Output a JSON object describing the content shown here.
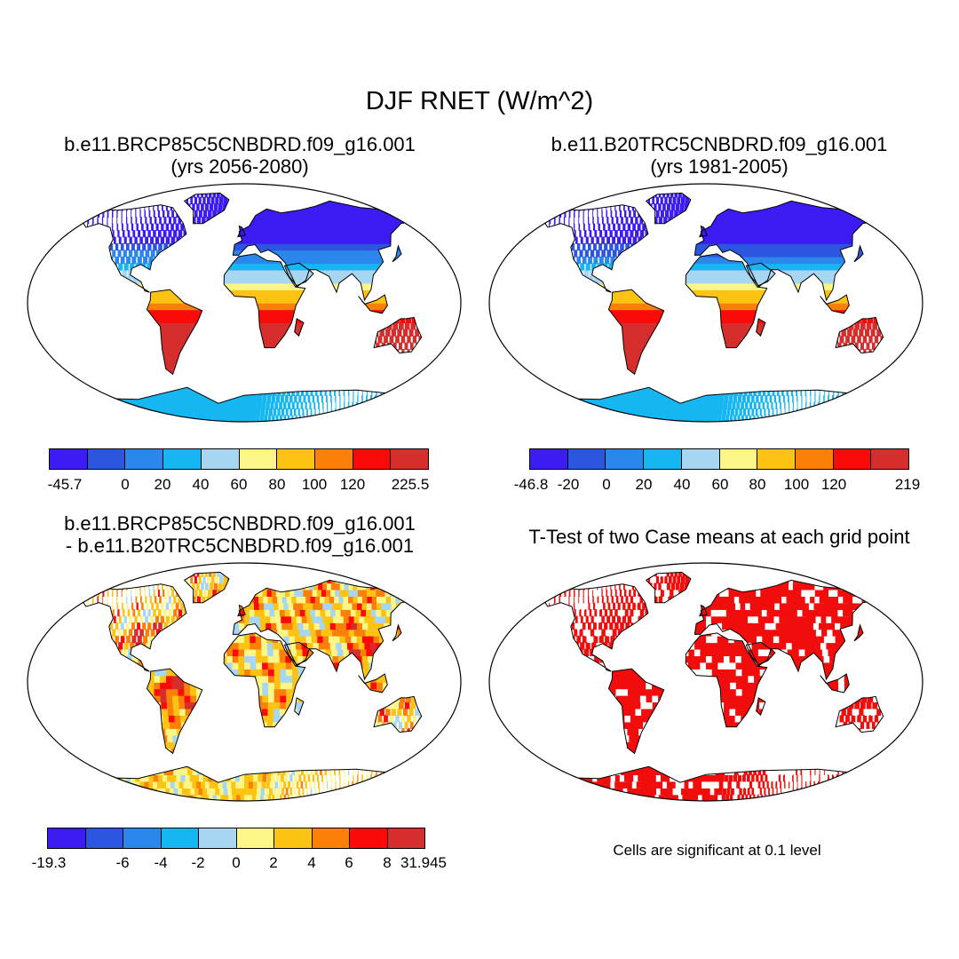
{
  "main_title": "DJF RNET (W/m^2)",
  "colors": {
    "scale": [
      "#3b1cf2",
      "#2c56e0",
      "#2b87ec",
      "#16b6f2",
      "#a6d6f2",
      "#fdf587",
      "#fcc312",
      "#fb8009",
      "#fb0a0a",
      "#d62d2d"
    ],
    "land_bg": "#ffffff",
    "coast": "#000000",
    "significant": "#f20d0d"
  },
  "panels": [
    {
      "name": "future",
      "title_line1": "b.e11.BRCP85C5CNBDRD.f09_g16.001",
      "title_line2": "(yrs 2056-2080)",
      "colorbar_labels": [
        "-45.7",
        "",
        "0",
        "20",
        "40",
        "60",
        "80",
        "100",
        "120",
        "",
        "225.5"
      ]
    },
    {
      "name": "historical",
      "title_line1": "b.e11.B20TRC5CNBDRD.f09_g16.001",
      "title_line2": "(yrs 1981-2005)",
      "colorbar_labels": [
        "-46.8",
        "-20",
        "0",
        "20",
        "40",
        "60",
        "80",
        "100",
        "120",
        "",
        "219"
      ]
    },
    {
      "name": "difference",
      "title_line1": "b.e11.BRCP85C5CNBDRD.f09_g16.001",
      "title_line2": "- b.e11.B20TRC5CNBDRD.f09_g16.001",
      "colorbar_labels": [
        "-19.3",
        "",
        "-6",
        "-4",
        "-2",
        "0",
        "2",
        "4",
        "6",
        "8",
        "31.945"
      ]
    },
    {
      "name": "ttest",
      "title_line1": "T-Test of two Case means at each grid point",
      "note": "Cells are significant at 0.1 level"
    }
  ]
}
